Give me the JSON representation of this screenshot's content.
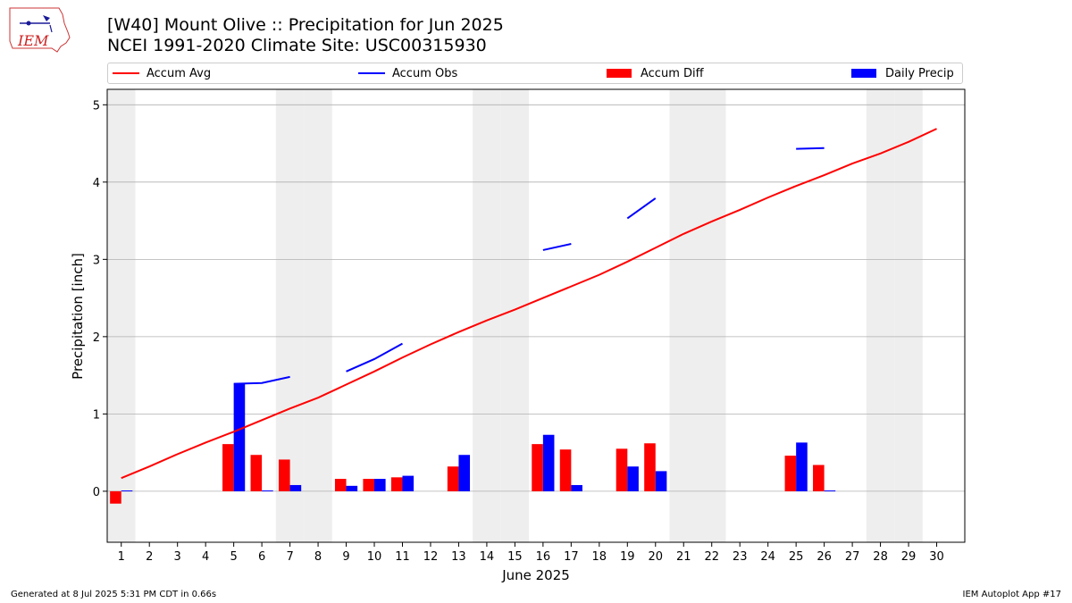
{
  "header": {
    "title_line1": "[W40] Mount Olive :: Precipitation for Jun 2025",
    "title_line2": "NCEI 1991-2020 Climate Site: USC00315930",
    "logo_text": "IEM"
  },
  "footer": {
    "left": "Generated at 8 Jul 2025 5:31 PM CDT in 0.66s",
    "right": "IEM Autoplot App #17"
  },
  "colors": {
    "avg": "#ff0000",
    "obs": "#0000ff",
    "diff": "#ff0000",
    "daily": "#0000ff",
    "weekend": "#eeeeee",
    "grid": "#b0b0b0"
  },
  "chart_data": {
    "type": "bar",
    "xlabel": "June 2025",
    "ylabel": "Precipitation [inch]",
    "ylim": [
      -0.66,
      5.2
    ],
    "xlim": [
      0.5,
      31
    ],
    "yticks": [
      0,
      1,
      2,
      3,
      4,
      5
    ],
    "grid": "horizontal",
    "legend_position": "top",
    "days": [
      1,
      2,
      3,
      4,
      5,
      6,
      7,
      8,
      9,
      10,
      11,
      12,
      13,
      14,
      15,
      16,
      17,
      18,
      19,
      20,
      21,
      22,
      23,
      24,
      25,
      26,
      27,
      28,
      29,
      30
    ],
    "weekend_days": [
      1,
      7,
      8,
      14,
      15,
      21,
      22,
      28,
      29
    ],
    "series": [
      {
        "name": "Accum Avg",
        "kind": "line",
        "values": [
          0.17,
          0.32,
          0.48,
          0.63,
          0.77,
          0.92,
          1.07,
          1.21,
          1.38,
          1.55,
          1.73,
          1.9,
          2.06,
          2.21,
          2.35,
          2.5,
          2.65,
          2.8,
          2.97,
          3.15,
          3.33,
          3.49,
          3.64,
          3.8,
          3.95,
          4.09,
          4.24,
          4.37,
          4.52,
          4.69
        ]
      },
      {
        "name": "Accum Obs",
        "kind": "line",
        "values": [
          null,
          null,
          null,
          null,
          1.39,
          1.4,
          1.48,
          null,
          1.55,
          1.71,
          1.91,
          null,
          null,
          null,
          null,
          3.12,
          3.2,
          null,
          3.53,
          3.79,
          null,
          null,
          null,
          null,
          4.43,
          4.44,
          null,
          null,
          null,
          null
        ]
      },
      {
        "name": "Accum Diff",
        "kind": "bar",
        "values": [
          -0.16,
          0,
          0,
          0,
          0.61,
          0.47,
          0.41,
          0,
          0.16,
          0.16,
          0.18,
          0,
          0.32,
          0,
          0,
          0.61,
          0.54,
          0,
          0.55,
          0.62,
          0,
          0,
          0,
          0,
          0.46,
          0.34,
          0,
          0,
          0,
          0
        ]
      },
      {
        "name": "Daily Precip",
        "kind": "bar",
        "values": [
          0.01,
          0,
          0,
          0,
          1.39,
          0.01,
          0.08,
          0,
          0.07,
          0.16,
          0.2,
          0,
          0.47,
          0,
          0,
          0.73,
          0.08,
          0,
          0.32,
          0.26,
          0,
          0,
          0,
          0,
          0.63,
          0.01,
          0,
          0,
          0,
          0
        ]
      }
    ]
  }
}
